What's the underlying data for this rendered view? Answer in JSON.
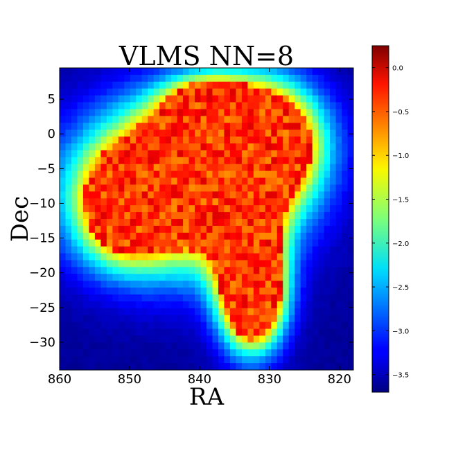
{
  "chart_data": {
    "type": "heatmap",
    "title": "VLMS NN=8",
    "xlabel": "RA",
    "ylabel": "Dec",
    "xlim": [
      860,
      818
    ],
    "ylim": [
      -34,
      9.5
    ],
    "x_ticks": [
      "860",
      "850",
      "840",
      "830",
      "820"
    ],
    "x_tick_values": [
      860,
      850,
      840,
      830,
      820
    ],
    "y_ticks": [
      "5",
      "0",
      "−5",
      "−10",
      "−15",
      "−20",
      "−25",
      "−30"
    ],
    "y_tick_values": [
      5,
      0,
      -5,
      -10,
      -15,
      -20,
      -25,
      -30
    ],
    "colormap": "jet",
    "color_range": [
      -3.7,
      0.25
    ],
    "colorbar_ticks": [
      "0.0",
      "−0.5",
      "−1.0",
      "−1.5",
      "−2.0",
      "−2.5",
      "−3.0",
      "−3.5"
    ],
    "colorbar_tick_values": [
      0.0,
      -0.5,
      -1.0,
      -1.5,
      -2.0,
      -2.5,
      -3.0,
      -3.5
    ],
    "grid_resolution": {
      "ra_bins": 50,
      "dec_bins": 44
    },
    "density_peak_region": {
      "ra_range": [
        857,
        823
      ],
      "dec_range": [
        -29,
        5
      ],
      "peak_value": 0.1
    }
  }
}
